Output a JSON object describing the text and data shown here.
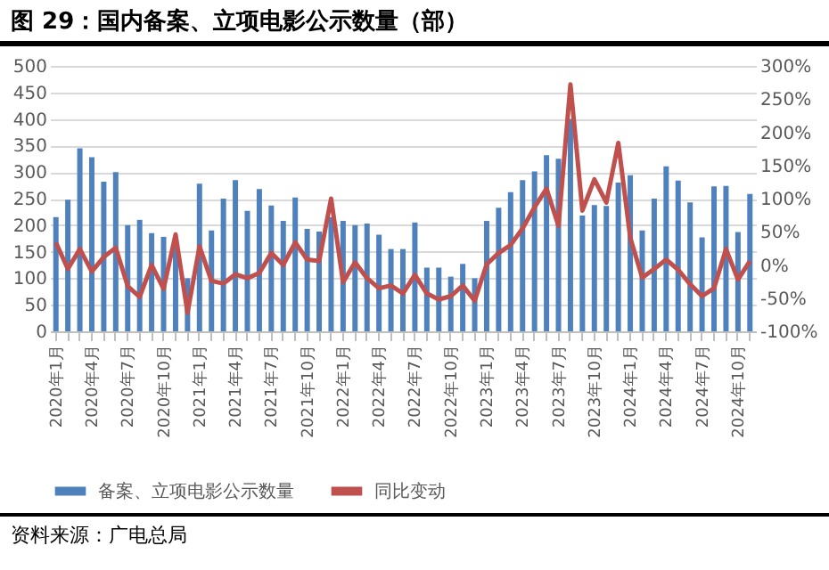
{
  "chart_data": {
    "type": "bar",
    "title": "图 29：国内备案、立项电影公示数量（部）",
    "categories": [
      "2020年1月",
      null,
      null,
      "2020年4月",
      null,
      null,
      "2020年7月",
      null,
      null,
      "2020年10月",
      null,
      null,
      "2021年1月",
      null,
      null,
      "2021年4月",
      null,
      null,
      "2021年7月",
      null,
      null,
      "2021年10月",
      null,
      null,
      "2022年1月",
      null,
      null,
      "2022年4月",
      null,
      null,
      "2022年7月",
      null,
      null,
      "2022年10月",
      null,
      null,
      "2023年1月",
      null,
      null,
      "2023年4月",
      null,
      null,
      "2023年7月",
      null,
      null,
      "2023年10月",
      null,
      null,
      "2024年1月",
      null,
      null,
      "2024年4月",
      null,
      null,
      "2024年7月",
      null,
      null,
      "2024年10月",
      null
    ],
    "series": [
      {
        "name": "备案、立项电影公示数量",
        "color": "#4f81bd",
        "values": [
          215,
          248,
          345,
          328,
          282,
          300,
          200,
          210,
          185,
          178,
          170,
          100,
          278,
          190,
          250,
          285,
          227,
          268,
          237,
          208,
          252,
          193,
          188,
          215,
          208,
          200,
          203,
          182,
          155,
          155,
          205,
          120,
          120,
          103,
          127,
          100,
          208,
          233,
          262,
          285,
          301,
          332,
          325,
          400,
          218,
          238,
          236,
          280,
          294,
          190,
          250,
          311,
          284,
          243,
          177,
          273,
          274,
          187,
          259
        ]
      },
      {
        "name": "同比变动",
        "type": "line",
        "axis": "y2",
        "color": "#c0504d",
        "values": [
          34,
          -6,
          24,
          -10,
          12,
          26,
          -32,
          -48,
          0,
          -36,
          46,
          -72,
          28,
          -24,
          -28,
          -14,
          -20,
          -12,
          18,
          0,
          34,
          8,
          6,
          100,
          -26,
          4,
          -20,
          -35,
          -31,
          -43,
          -15,
          -43,
          -52,
          -47,
          -31,
          -54,
          1,
          18,
          30,
          55,
          87,
          115,
          59,
          272,
          82,
          129,
          94,
          184,
          41,
          -19,
          -6,
          8,
          -7,
          -29,
          -47,
          -35,
          24,
          -22,
          6
        ]
      }
    ],
    "ylim": [
      0,
      500
    ],
    "yticks": [
      0,
      50,
      100,
      150,
      200,
      250,
      300,
      350,
      400,
      450,
      500
    ],
    "y2lim": [
      -100,
      300
    ],
    "y2ticks": [
      {
        "value": -100,
        "label": "-100%"
      },
      {
        "value": -50,
        "label": "-50%"
      },
      {
        "value": 0,
        "label": "0%"
      },
      {
        "value": 50,
        "label": "50%"
      },
      {
        "value": 100,
        "label": "100%"
      },
      {
        "value": 150,
        "label": "150%"
      },
      {
        "value": 200,
        "label": "200%"
      },
      {
        "value": 250,
        "label": "250%"
      },
      {
        "value": 300,
        "label": "300%"
      }
    ],
    "grid": "y",
    "legend": "bottom",
    "annotations": [
      "资料来源：广电总局"
    ]
  }
}
